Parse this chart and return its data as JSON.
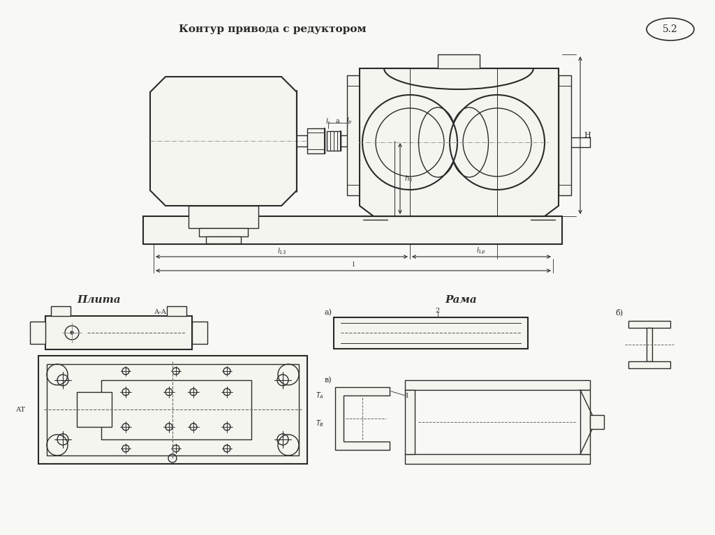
{
  "title": "Контур привода с редуктором",
  "figure_number": "5.2",
  "bg_color": "#f5f5f0",
  "line_color": "#2a2a2a",
  "dash_color": "#666666",
  "section_labels": {
    "plita": "Плита",
    "rama": "Рама",
    "aa": "А-А",
    "a_label": "а)",
    "b_label": "б)",
    "v_label": "в)"
  },
  "dim_labels": {
    "l_s": "$l_s$",
    "a": "а",
    "l_p": "$l_p$",
    "l_13": "$l_{13}$",
    "l_1p": "$l_{1p}$",
    "l": "l",
    "H": "H",
    "h0": "$h_0$",
    "T_A": "$T_A$",
    "T_B": "$T_B$",
    "AT": "АТ",
    "label_1": "1",
    "label_2": "2"
  }
}
